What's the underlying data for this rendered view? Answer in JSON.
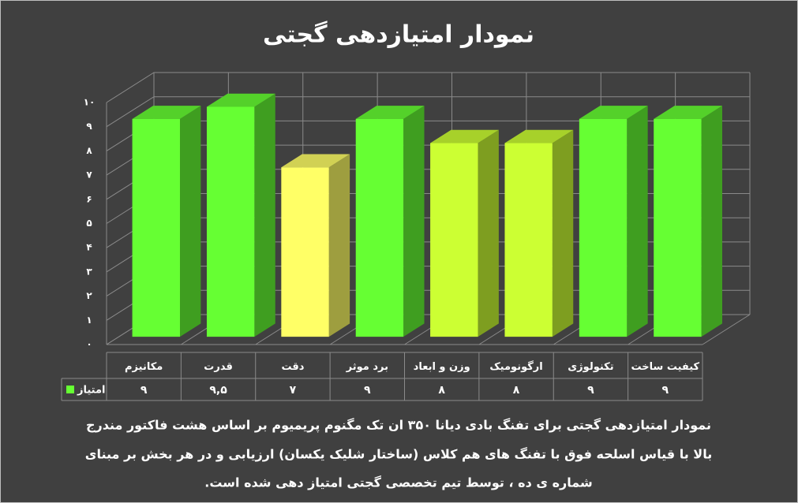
{
  "chart_data": {
    "type": "bar3d",
    "title": "نمودار امتیازدهی گجتی",
    "categories": [
      "مکانیزم",
      "قدرت",
      "دقت",
      "برد موثر",
      "وزن و ابعاد",
      "ارگونومیک",
      "تکنولوژی",
      "کیفیت ساخت"
    ],
    "series": [
      {
        "name": "امتیاز",
        "color": "#66ff33",
        "colors": [
          "#66ff33",
          "#66ff33",
          "#ffff66",
          "#66ff33",
          "#ccff33",
          "#ccff33",
          "#66ff33",
          "#66ff33"
        ],
        "values": [
          9,
          9.5,
          7,
          9,
          8,
          8,
          9,
          9
        ],
        "value_labels": [
          "۹",
          "۹,۵",
          "۷",
          "۹",
          "۸",
          "۸",
          "۹",
          "۹"
        ]
      }
    ],
    "ylim": [
      0,
      10
    ],
    "yticks": [
      {
        "value": 0,
        "label": "۰"
      },
      {
        "value": 1,
        "label": "۱"
      },
      {
        "value": 2,
        "label": "۲"
      },
      {
        "value": 3,
        "label": "۳"
      },
      {
        "value": 4,
        "label": "۴"
      },
      {
        "value": 5,
        "label": "۵"
      },
      {
        "value": 6,
        "label": "۶"
      },
      {
        "value": 7,
        "label": "۷"
      },
      {
        "value": 8,
        "label": "۸"
      },
      {
        "value": 9,
        "label": "۹"
      },
      {
        "value": 10,
        "label": "۱۰"
      }
    ],
    "grid": true,
    "caption": [
      "نمودار امتیازدهی گجتی برای تفنگ بادی دیانا ۳۵۰ ان تک مگنوم پریمیوم  بر اساس هشت فاکتور مندرج",
      "بالا با قیاس اسلحه فوق با تفنگ های هم کلاس (ساختار شلیک یکسان) ارزیابی و در هر بخش بر مبنای",
      "شماره ی ده ، توسط تیم تخصصی گجتی امتیاز دهی شده است."
    ]
  }
}
